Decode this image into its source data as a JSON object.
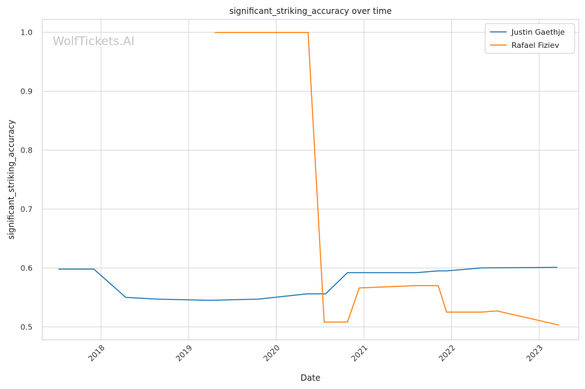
{
  "chart_data": {
    "type": "line",
    "title": "significant_striking_accuracy over time",
    "xlabel": "Date",
    "ylabel": "significant_striking_accuracy",
    "watermark": "WolfTickets.AI",
    "x_ticks": [
      "2018",
      "2019",
      "2020",
      "2021",
      "2022",
      "2023"
    ],
    "y_ticks": [
      "0.5",
      "0.6",
      "0.7",
      "0.8",
      "0.9",
      "1.0"
    ],
    "xlim": [
      "2017-05-01",
      "2023-06-15"
    ],
    "ylim": [
      0.478,
      1.022
    ],
    "grid": true,
    "legend_position": "top-right",
    "series": [
      {
        "name": "Justin Gaethje",
        "color": "#1f77b4",
        "points": [
          [
            "2017-07-07",
            0.598
          ],
          [
            "2017-12-02",
            0.598
          ],
          [
            "2018-04-14",
            0.55
          ],
          [
            "2018-08-25",
            0.547
          ],
          [
            "2019-03-30",
            0.545
          ],
          [
            "2019-10-18",
            0.547
          ],
          [
            "2020-05-09",
            0.556
          ],
          [
            "2020-07-25",
            0.556
          ],
          [
            "2020-10-24",
            0.592
          ],
          [
            "2021-08-07",
            0.592
          ],
          [
            "2021-11-06",
            0.595
          ],
          [
            "2021-12-11",
            0.595
          ],
          [
            "2022-05-07",
            0.6
          ],
          [
            "2023-03-18",
            0.601
          ]
        ]
      },
      {
        "name": "Rafael Fiziev",
        "color": "#ff7f0e",
        "points": [
          [
            "2019-04-20",
            1.0
          ],
          [
            "2020-05-13",
            1.0
          ],
          [
            "2020-07-19",
            0.508
          ],
          [
            "2020-10-24",
            0.508
          ],
          [
            "2020-12-12",
            0.566
          ],
          [
            "2021-08-07",
            0.57
          ],
          [
            "2021-11-06",
            0.57
          ],
          [
            "2021-12-11",
            0.525
          ],
          [
            "2022-05-07",
            0.525
          ],
          [
            "2022-07-09",
            0.527
          ],
          [
            "2023-03-25",
            0.503
          ]
        ]
      }
    ]
  }
}
